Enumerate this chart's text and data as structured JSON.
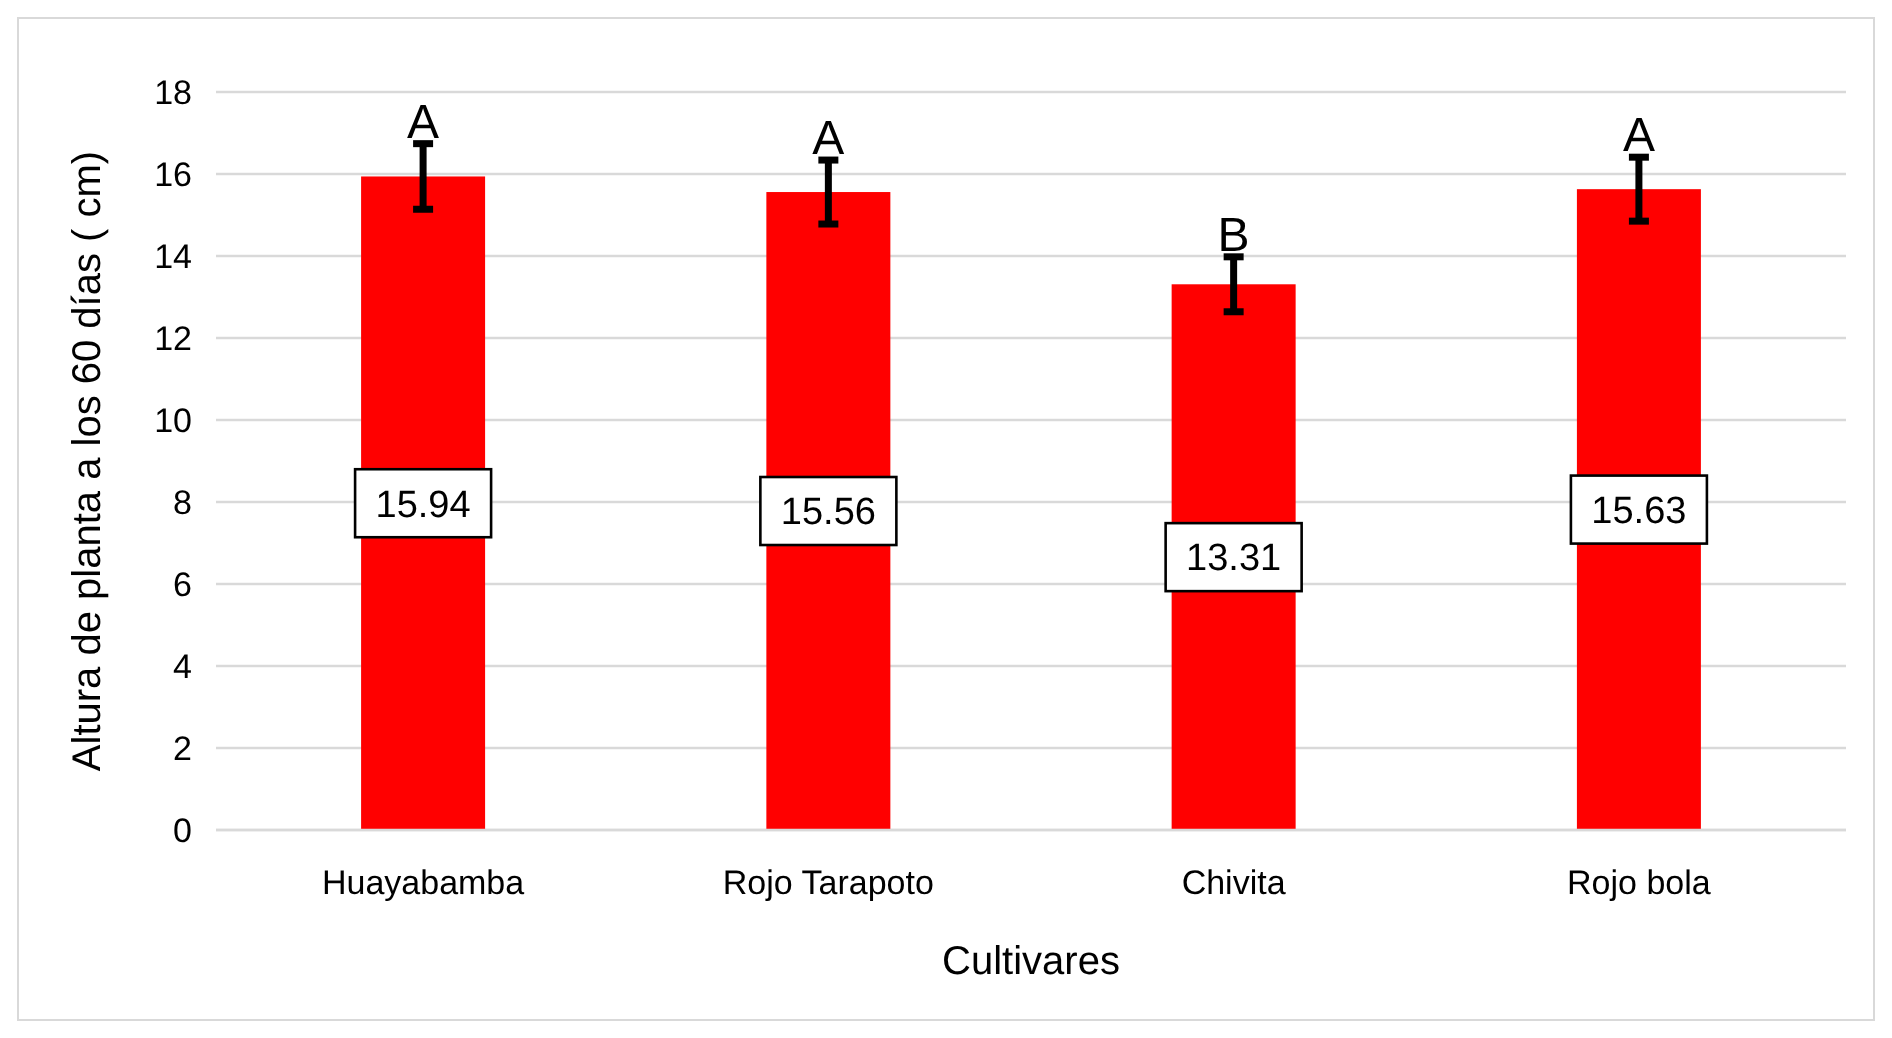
{
  "chart_data": {
    "type": "bar",
    "xlabel": "Cultivares",
    "ylabel": "Altura de planta a los 60 días ( cm)",
    "categories": [
      "Huayabamba",
      "Rojo Tarapoto",
      "Chivita",
      "Rojo bola"
    ],
    "values": [
      15.94,
      15.56,
      13.31,
      15.63
    ],
    "errors": [
      0.8,
      0.78,
      0.67,
      0.78
    ],
    "color": "#ff0000",
    "ylim": [
      0,
      18
    ],
    "yticks": [
      0,
      2,
      4,
      6,
      8,
      10,
      12,
      14,
      16,
      18
    ],
    "grid": "y",
    "data_labels": true,
    "annotations": [
      "A",
      "A",
      "B",
      "A"
    ]
  }
}
